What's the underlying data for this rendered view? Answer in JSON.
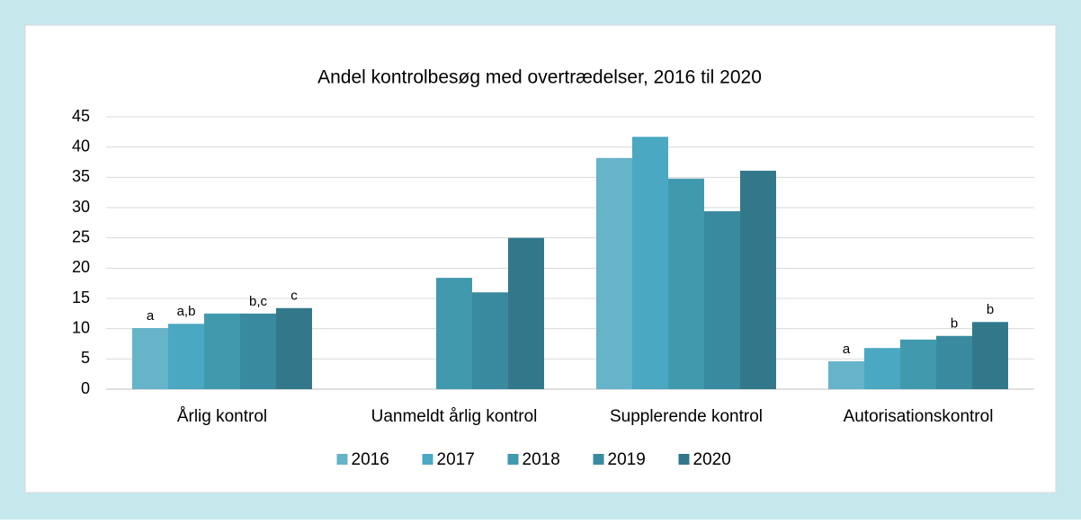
{
  "chart_data": {
    "type": "bar",
    "title": "Andel kontrolbesøg med overtrædelser, 2016 til 2020",
    "categories": [
      "Årlig kontrol",
      "Uanmeldt årlig kontrol",
      "Supplerende kontrol",
      "Autorisationskontrol"
    ],
    "series": [
      {
        "name": "2016",
        "color": "#67b3c9",
        "values": [
          10.1,
          null,
          38.2,
          4.6
        ],
        "annotations": [
          "a",
          null,
          null,
          "a"
        ]
      },
      {
        "name": "2017",
        "color": "#4aa8c3",
        "values": [
          10.8,
          null,
          41.7,
          6.8
        ],
        "annotations": [
          "a,b",
          null,
          null,
          null
        ]
      },
      {
        "name": "2018",
        "color": "#4199ae",
        "values": [
          12.5,
          18.4,
          34.8,
          8.2
        ],
        "annotations": [
          null,
          null,
          null,
          null
        ]
      },
      {
        "name": "2019",
        "color": "#3a8a9f",
        "values": [
          12.5,
          16.0,
          29.4,
          8.8
        ],
        "annotations": [
          "b,c",
          null,
          null,
          "b"
        ]
      },
      {
        "name": "2020",
        "color": "#33788a",
        "values": [
          13.4,
          25.0,
          36.1,
          11.1
        ],
        "annotations": [
          "c",
          null,
          null,
          "b"
        ]
      }
    ],
    "ylim": [
      0,
      45
    ],
    "yticks": [
      0,
      5,
      10,
      15,
      20,
      25,
      30,
      35,
      40,
      45
    ],
    "grid": true,
    "legend": "bottom"
  }
}
